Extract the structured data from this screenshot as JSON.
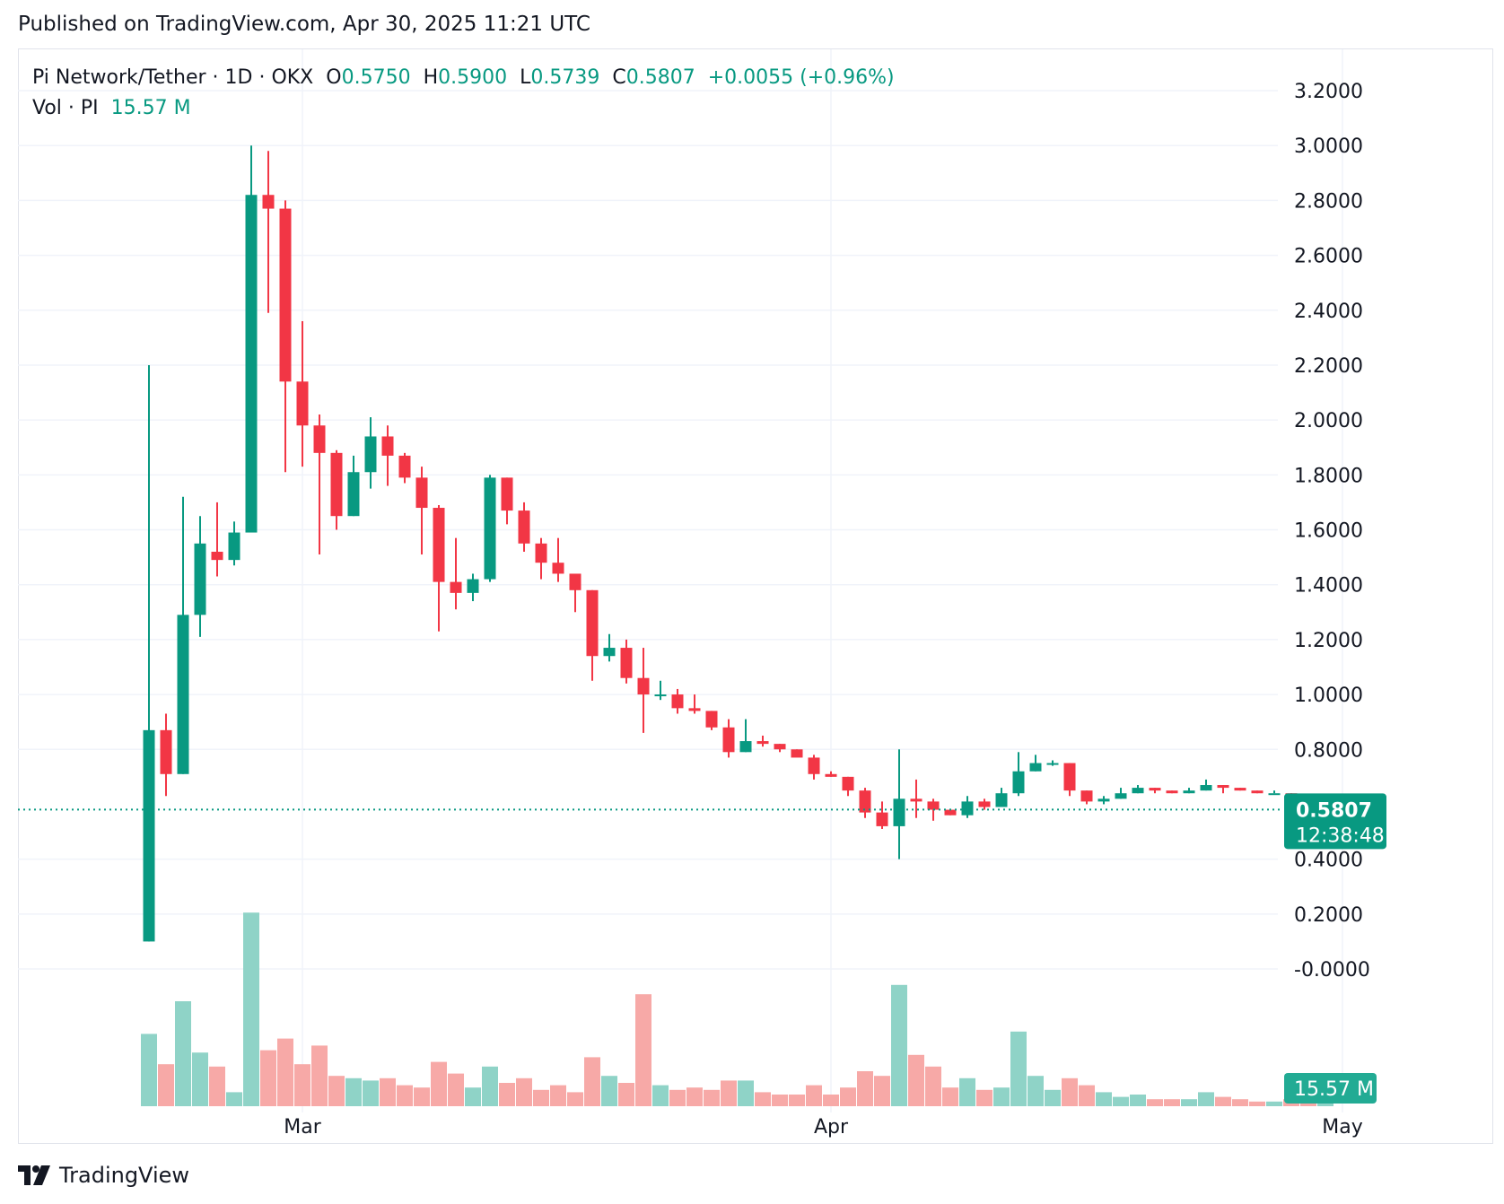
{
  "published": "Published on TradingView.com, Apr 30, 2025 11:21 UTC",
  "legend": {
    "symbol": "Pi Network/Tether · 1D · OKX",
    "open_label": "O",
    "open": "0.5750",
    "high_label": "H",
    "high": "0.5900",
    "low_label": "L",
    "low": "0.5739",
    "close_label": "C",
    "close": "0.5807",
    "change": "+0.0055 (+0.96%)",
    "vol_label": "Vol · PI",
    "vol_value": "15.57 M"
  },
  "price_badge": {
    "price": "0.5807",
    "countdown": "12:38:48"
  },
  "volume_badge": "15.57 M",
  "brand": "TradingView",
  "colors": {
    "up": "#089981",
    "down": "#f23645",
    "vol_up": "#8fd3c7",
    "vol_down": "#f7a9a7",
    "grid": "#f0f3fa"
  },
  "chart_data": {
    "type": "candlestick",
    "ylim": [
      -0.1,
      3.2
    ],
    "y_ticks": [
      "3.2000",
      "3.0000",
      "2.8000",
      "2.6000",
      "2.4000",
      "2.2000",
      "2.0000",
      "1.8000",
      "1.6000",
      "1.4000",
      "1.2000",
      "1.0000",
      "0.8000",
      "0.4000",
      "0.2000",
      "-0.0000"
    ],
    "x_ticks": [
      {
        "label": "Mar",
        "index": 9
      },
      {
        "label": "Apr",
        "index": 40
      },
      {
        "label": "May",
        "index": 70
      }
    ],
    "candles": [
      [
        0.1,
        2.2,
        0.1,
        0.87,
        31
      ],
      [
        0.87,
        0.93,
        0.63,
        0.71,
        18
      ],
      [
        0.71,
        1.72,
        0.71,
        1.29,
        45
      ],
      [
        1.29,
        1.65,
        1.21,
        1.55,
        23
      ],
      [
        1.52,
        1.7,
        1.43,
        1.49,
        17
      ],
      [
        1.49,
        1.63,
        1.47,
        1.59,
        6
      ],
      [
        1.59,
        3.0,
        1.59,
        2.82,
        83
      ],
      [
        2.82,
        2.98,
        2.39,
        2.77,
        24
      ],
      [
        2.77,
        2.8,
        1.81,
        2.14,
        29
      ],
      [
        2.14,
        2.36,
        1.83,
        1.98,
        18
      ],
      [
        1.98,
        2.02,
        1.51,
        1.88,
        26
      ],
      [
        1.88,
        1.89,
        1.6,
        1.65,
        13
      ],
      [
        1.65,
        1.87,
        1.65,
        1.81,
        12
      ],
      [
        1.81,
        2.01,
        1.75,
        1.94,
        11
      ],
      [
        1.94,
        1.98,
        1.76,
        1.87,
        12
      ],
      [
        1.87,
        1.88,
        1.77,
        1.79,
        9
      ],
      [
        1.79,
        1.83,
        1.51,
        1.68,
        8
      ],
      [
        1.68,
        1.69,
        1.23,
        1.41,
        19
      ],
      [
        1.41,
        1.57,
        1.31,
        1.37,
        14
      ],
      [
        1.37,
        1.44,
        1.34,
        1.42,
        8
      ],
      [
        1.42,
        1.8,
        1.41,
        1.79,
        17
      ],
      [
        1.79,
        1.79,
        1.62,
        1.67,
        10
      ],
      [
        1.67,
        1.7,
        1.52,
        1.55,
        12
      ],
      [
        1.55,
        1.57,
        1.42,
        1.48,
        7
      ],
      [
        1.48,
        1.57,
        1.41,
        1.44,
        9
      ],
      [
        1.44,
        1.43,
        1.3,
        1.38,
        6
      ],
      [
        1.38,
        1.38,
        1.05,
        1.14,
        21
      ],
      [
        1.14,
        1.22,
        1.12,
        1.17,
        13
      ],
      [
        1.17,
        1.2,
        1.04,
        1.06,
        10
      ],
      [
        1.06,
        1.17,
        0.86,
        1.0,
        48
      ],
      [
        1.0,
        1.05,
        0.98,
        1.0,
        9
      ],
      [
        1.0,
        1.02,
        0.93,
        0.95,
        7
      ],
      [
        0.95,
        1.0,
        0.93,
        0.94,
        8
      ],
      [
        0.94,
        0.94,
        0.87,
        0.88,
        7
      ],
      [
        0.88,
        0.91,
        0.77,
        0.79,
        11
      ],
      [
        0.79,
        0.91,
        0.79,
        0.83,
        11
      ],
      [
        0.83,
        0.85,
        0.81,
        0.82,
        6
      ],
      [
        0.82,
        0.82,
        0.79,
        0.8,
        5
      ],
      [
        0.8,
        0.8,
        0.78,
        0.77,
        5
      ],
      [
        0.77,
        0.78,
        0.69,
        0.71,
        9
      ],
      [
        0.71,
        0.72,
        0.7,
        0.7,
        5
      ],
      [
        0.7,
        0.7,
        0.63,
        0.65,
        8
      ],
      [
        0.65,
        0.66,
        0.55,
        0.57,
        15
      ],
      [
        0.57,
        0.61,
        0.51,
        0.52,
        13
      ],
      [
        0.52,
        0.8,
        0.4,
        0.62,
        52
      ],
      [
        0.62,
        0.69,
        0.55,
        0.61,
        22
      ],
      [
        0.61,
        0.62,
        0.54,
        0.58,
        17
      ],
      [
        0.58,
        0.58,
        0.56,
        0.56,
        8
      ],
      [
        0.56,
        0.63,
        0.55,
        0.61,
        12
      ],
      [
        0.61,
        0.62,
        0.58,
        0.59,
        7
      ],
      [
        0.59,
        0.66,
        0.59,
        0.64,
        8
      ],
      [
        0.64,
        0.79,
        0.63,
        0.72,
        32
      ],
      [
        0.72,
        0.78,
        0.72,
        0.75,
        13
      ],
      [
        0.75,
        0.76,
        0.74,
        0.75,
        7
      ],
      [
        0.75,
        0.75,
        0.63,
        0.65,
        12
      ],
      [
        0.65,
        0.65,
        0.6,
        0.61,
        9
      ],
      [
        0.61,
        0.63,
        0.6,
        0.62,
        6
      ],
      [
        0.62,
        0.66,
        0.62,
        0.64,
        4
      ],
      [
        0.64,
        0.67,
        0.64,
        0.66,
        5
      ],
      [
        0.66,
        0.66,
        0.64,
        0.65,
        3
      ],
      [
        0.65,
        0.65,
        0.64,
        0.64,
        3
      ],
      [
        0.64,
        0.66,
        0.64,
        0.65,
        3
      ],
      [
        0.65,
        0.69,
        0.65,
        0.67,
        6
      ],
      [
        0.67,
        0.67,
        0.64,
        0.66,
        4
      ],
      [
        0.66,
        0.66,
        0.65,
        0.65,
        3
      ],
      [
        0.65,
        0.65,
        0.64,
        0.64,
        2
      ],
      [
        0.64,
        0.65,
        0.64,
        0.64,
        2
      ],
      [
        0.64,
        0.64,
        0.62,
        0.63,
        3
      ],
      [
        0.63,
        0.63,
        0.56,
        0.58,
        5
      ],
      [
        0.575,
        0.59,
        0.5739,
        0.5807,
        2
      ]
    ]
  }
}
